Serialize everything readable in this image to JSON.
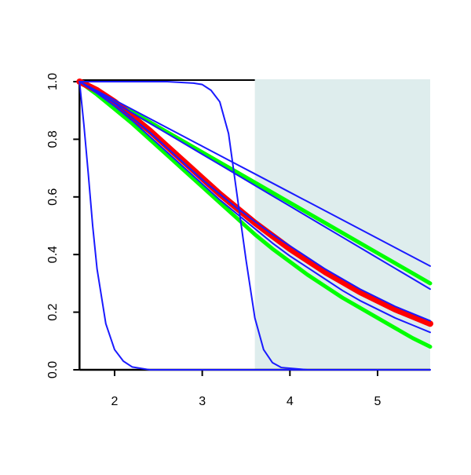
{
  "chart_data": {
    "type": "line",
    "x": [
      1.6,
      1.8,
      2.0,
      2.2,
      2.4,
      2.6,
      2.8,
      3.0,
      3.2,
      3.4,
      3.6,
      3.8,
      4.0,
      4.2,
      4.4,
      4.6,
      4.8,
      5.0,
      5.2,
      5.4,
      5.6
    ],
    "xlim": [
      1.6,
      5.6
    ],
    "ylim": [
      0,
      1
    ],
    "xticks": [
      2,
      3,
      4,
      5
    ],
    "yticks": [
      {
        "value": 0,
        "label": "0.0"
      },
      0.2,
      0.4,
      0.6,
      0.8,
      {
        "value": 1,
        "label": "1.0"
      }
    ],
    "shaded_region": {
      "xlim": [
        3.6,
        5.6
      ],
      "color": "#deeded"
    },
    "series": [
      {
        "color": "#00ff00",
        "linewidth": 5,
        "values": [
          1,
          0.955,
          0.905,
          0.855,
          0.8,
          0.745,
          0.69,
          0.635,
          0.58,
          0.525,
          0.47,
          0.42,
          0.375,
          0.33,
          0.29,
          0.25,
          0.215,
          0.18,
          0.145,
          0.11,
          0.08
        ]
      },
      {
        "color": "#00ff00",
        "linewidth": 5,
        "values": [
          1,
          0.965,
          0.93,
          0.895,
          0.86,
          0.825,
          0.79,
          0.755,
          0.72,
          0.685,
          0.65,
          0.615,
          0.58,
          0.545,
          0.51,
          0.475,
          0.44,
          0.405,
          0.37,
          0.335,
          0.3
        ]
      },
      {
        "color": "#ff0000",
        "linewidth": 8,
        "values": [
          1,
          0.97,
          0.93,
          0.88,
          0.83,
          0.775,
          0.72,
          0.665,
          0.61,
          0.56,
          0.51,
          0.465,
          0.42,
          0.38,
          0.34,
          0.305,
          0.27,
          0.24,
          0.21,
          0.185,
          0.16
        ]
      },
      {
        "color": "#1a1aff",
        "linewidth": 2,
        "values": [
          1,
          0.968,
          0.936,
          0.904,
          0.872,
          0.84,
          0.808,
          0.776,
          0.744,
          0.712,
          0.68,
          0.648,
          0.616,
          0.584,
          0.552,
          0.52,
          0.488,
          0.456,
          0.424,
          0.392,
          0.36
        ]
      },
      {
        "color": "#1a1aff",
        "linewidth": 2,
        "values": [
          1,
          0.964,
          0.928,
          0.892,
          0.856,
          0.82,
          0.784,
          0.748,
          0.712,
          0.676,
          0.64,
          0.604,
          0.568,
          0.532,
          0.496,
          0.46,
          0.424,
          0.388,
          0.352,
          0.316,
          0.28
        ]
      },
      {
        "color": "#1a1aff",
        "linewidth": 2,
        "values": [
          1,
          0.965,
          0.925,
          0.875,
          0.825,
          0.77,
          0.715,
          0.66,
          0.61,
          0.56,
          0.515,
          0.47,
          0.43,
          0.39,
          0.35,
          0.315,
          0.28,
          0.25,
          0.22,
          0.195,
          0.17
        ]
      },
      {
        "color": "#1a1aff",
        "linewidth": 2,
        "values": [
          1,
          0.96,
          0.915,
          0.865,
          0.81,
          0.755,
          0.7,
          0.645,
          0.59,
          0.54,
          0.49,
          0.44,
          0.395,
          0.355,
          0.315,
          0.275,
          0.24,
          0.21,
          0.18,
          0.155,
          0.13
        ]
      },
      {
        "color": "#1a1aff",
        "linewidth": 2,
        "x": [
          1.6,
          1.65,
          1.7,
          1.75,
          1.8,
          1.9,
          2.0,
          2.1,
          2.2,
          2.4,
          5.6
        ],
        "values": [
          1,
          0.85,
          0.68,
          0.5,
          0.35,
          0.16,
          0.07,
          0.03,
          0.01,
          0,
          0
        ]
      },
      {
        "color": "#1a1aff",
        "linewidth": 2,
        "x": [
          1.6,
          2.6,
          2.9,
          3.0,
          3.1,
          3.2,
          3.3,
          3.4,
          3.5,
          3.6,
          3.7,
          3.8,
          3.9,
          4.2,
          5.6
        ],
        "values": [
          1,
          1,
          0.995,
          0.99,
          0.97,
          0.93,
          0.82,
          0.6,
          0.38,
          0.18,
          0.07,
          0.025,
          0.008,
          0,
          0
        ]
      }
    ]
  }
}
